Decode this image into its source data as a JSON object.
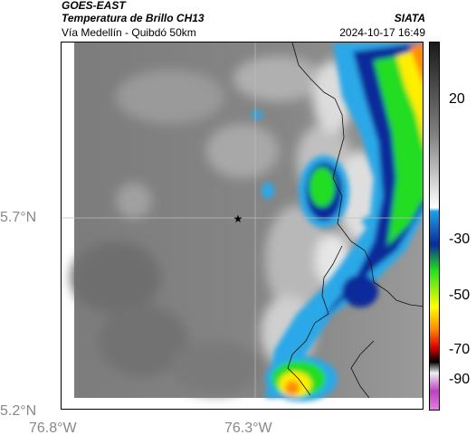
{
  "header": {
    "title_line1": "GOES-EAST",
    "title_line2": "Temperatura de Brillo CH13",
    "subtitle": "Vía Medellín - Quibdó 50km",
    "organization": "SIATA",
    "datetime": "2024-10-17 16:49"
  },
  "map": {
    "x_ticks": [
      {
        "value": -76.8,
        "label": "76.8°W"
      },
      {
        "value": -76.3,
        "label": "76.3°W"
      }
    ],
    "y_ticks": [
      {
        "value": 5.7,
        "label": "5.7°N"
      },
      {
        "value": 5.2,
        "label": "5.2°N"
      }
    ],
    "marker": {
      "symbol": "★",
      "lon": -76.32,
      "lat": 5.7
    }
  },
  "colorbar": {
    "labels": [
      "20",
      "-30",
      "-50",
      "-70",
      "-90"
    ],
    "colors": {
      "warm_top": "#1a1a1a",
      "warm_mid": "#808080",
      "warm_low": "#ffffff",
      "blue": "#1ea0e6",
      "darkblue": "#0a2a9a",
      "green": "#20e020",
      "yellow": "#ffff00",
      "orange": "#ff8c00",
      "red": "#e00000",
      "magenta": "#c040c0"
    }
  }
}
